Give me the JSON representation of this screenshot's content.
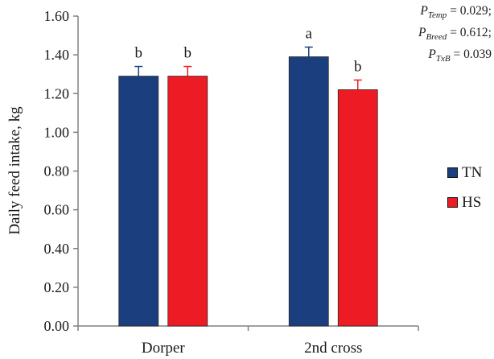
{
  "chart_data": {
    "type": "bar",
    "categories": [
      "Dorper",
      "2nd cross"
    ],
    "series": [
      {
        "name": "TN",
        "color": "#1b3f7e",
        "values": [
          1.29,
          1.39
        ],
        "errors": [
          0.05,
          0.05
        ],
        "labels": [
          "b",
          "a"
        ]
      },
      {
        "name": "HS",
        "color": "#ed1c24",
        "values": [
          1.29,
          1.22
        ],
        "errors": [
          0.05,
          0.05
        ],
        "labels": [
          "b",
          "b"
        ]
      }
    ],
    "title": "",
    "xlabel": "",
    "ylabel": "Daily feed intake, kg",
    "ylim": [
      0,
      1.6
    ],
    "yticks": [
      "0.00",
      "0.20",
      "0.40",
      "0.60",
      "0.80",
      "1.00",
      "1.20",
      "1.40",
      "1.60"
    ],
    "grid": false,
    "legend_position": "right"
  },
  "stats": [
    {
      "sub": "Temp",
      "text": " = 0.029;"
    },
    {
      "sub": "Breed",
      "text": " = 0.612;"
    },
    {
      "sub": "TxB",
      "text": " = 0.039"
    }
  ]
}
